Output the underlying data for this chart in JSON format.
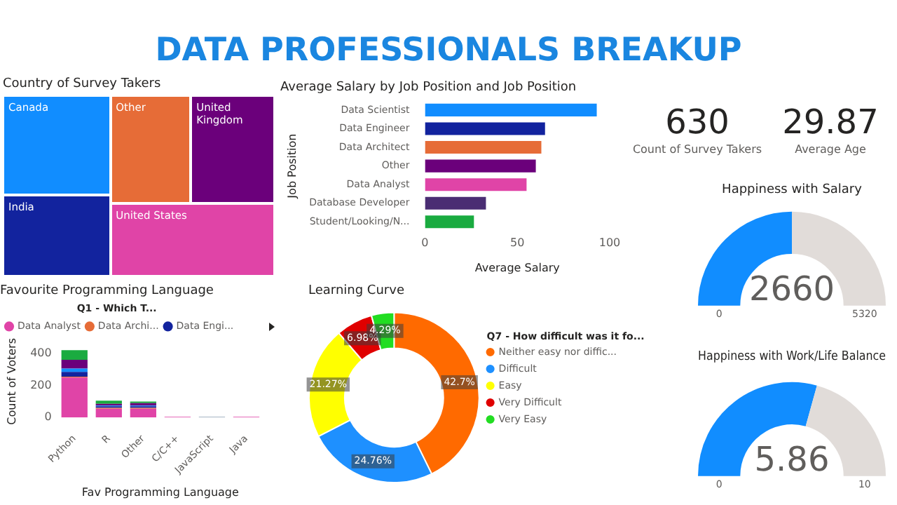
{
  "chart_data": [
    {
      "type": "other",
      "title": "DATA PROFESSIONALS BREAKUP"
    },
    {
      "type": "other",
      "title": "Country of Survey Takers",
      "categories": [
        "Canada",
        "India",
        "Other",
        "United Kingdom",
        "United States"
      ],
      "colors": [
        "#118dff",
        "#12239e",
        "#e66c37",
        "#6b007b",
        "#e044a7"
      ]
    },
    {
      "type": "bar",
      "orientation": "horizontal",
      "title": "Average Salary by Job Position and Job Position",
      "xlabel": "Average Salary",
      "ylabel": "Job Position",
      "categories": [
        "Data Scientist",
        "Data Engineer",
        "Data Architect",
        "Other",
        "Data Analyst",
        "Database Developer",
        "Student/Looking/N..."
      ],
      "values": [
        93,
        65,
        63,
        60,
        55,
        33,
        26.5
      ],
      "colors": [
        "#118dff",
        "#12239e",
        "#e66c37",
        "#6b007b",
        "#e044a7",
        "#4a2d73",
        "#1aab40"
      ],
      "xlim": [
        0,
        100
      ],
      "xticks": [
        0,
        50,
        100
      ]
    },
    {
      "type": "other",
      "annotations": [
        "630",
        "Count of Survey Takers",
        "29.87",
        "Average Age"
      ]
    },
    {
      "type": "donut",
      "title": "Happiness with Salary",
      "categories": [
        null,
        null
      ],
      "values": [
        2660,
        2660
      ],
      "value_labels": [
        "2660",
        null
      ],
      "annotations": [
        "0",
        "5320"
      ],
      "colors": [
        "#118dff",
        "#e1dcd9"
      ]
    },
    {
      "type": "bar",
      "stacked": true,
      "title": "Favourite Programming Language",
      "xlabel": "Fav Programming Language",
      "ylabel": "Count of Voters",
      "legend": "top",
      "legend_title": "Q1 - Which T...",
      "categories": [
        "Python",
        "R",
        "Other",
        "C/C++",
        "JavaScript",
        "Java"
      ],
      "ylim": [
        0,
        450
      ],
      "yticks": [
        0,
        200,
        400
      ],
      "series": [
        {
          "name": "Data Analyst",
          "color": "#e044a7",
          "values": [
            250,
            55,
            55,
            5,
            null,
            5
          ]
        },
        {
          "name": "Data Archi...",
          "color": "#e66c37",
          "values": [
            5,
            5,
            5,
            null,
            null,
            null
          ]
        },
        {
          "name": "Data Engi...",
          "color": "#12239e",
          "values": [
            30,
            10,
            10,
            null,
            null,
            null
          ]
        },
        {
          "color": "#118dff",
          "values": [
            20,
            5,
            5,
            null,
            null,
            null
          ]
        },
        {
          "color": "#6b007b",
          "values": [
            55,
            10,
            15,
            null,
            null,
            null
          ]
        },
        {
          "color": "#1aab40",
          "values": [
            60,
            20,
            10,
            null,
            null,
            null
          ]
        },
        {
          "color": "#8fa2b4",
          "values": [
            null,
            null,
            null,
            null,
            5,
            null
          ]
        }
      ]
    },
    {
      "type": "donut",
      "title": "Learning Curve",
      "legend": "right",
      "legend_title": "Q7 - How difficult was it fo...",
      "categories": [
        "Neither easy nor diffic...",
        "Difficult",
        "Easy",
        "Very Difficult",
        "Very Easy"
      ],
      "values": [
        42.7,
        24.76,
        21.27,
        6.98,
        4.29
      ],
      "value_labels": [
        "42.7%",
        "24.76%",
        "21.27%",
        "6.98%",
        "4.29%"
      ],
      "colors": [
        "#ff6a00",
        "#1e90ff",
        "#ffff00",
        "#e00000",
        "#22dd22"
      ]
    },
    {
      "type": "donut",
      "title": "Happiness with Work/Life Balance",
      "categories": [
        null,
        null
      ],
      "values": [
        5.86,
        4.14
      ],
      "value_labels": [
        "5.86",
        null
      ],
      "annotations": [
        "0",
        "10"
      ],
      "colors": [
        "#118dff",
        "#e1dcd9"
      ]
    }
  ]
}
